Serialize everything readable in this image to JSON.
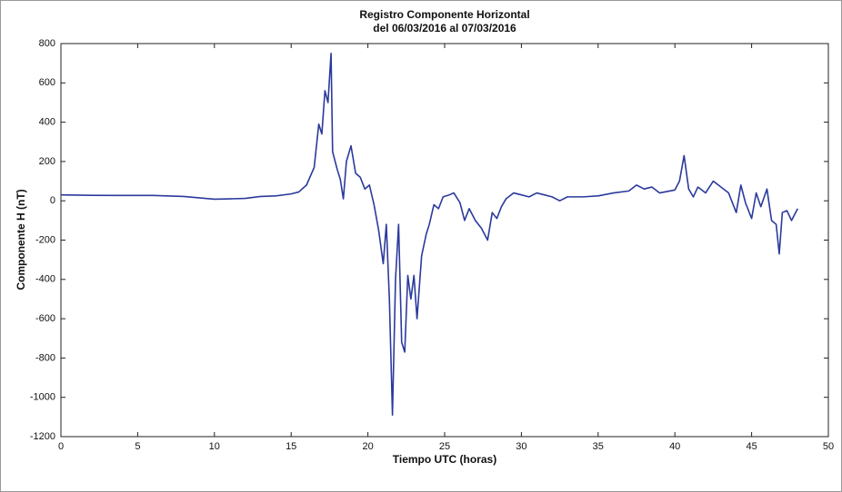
{
  "chart_data": {
    "type": "line",
    "title": "Registro Componente Horizontal",
    "subtitle": "del 06/03/2016 al 07/03/2016",
    "x_label": "Tiempo UTC (horas)",
    "y_label": "Componente H (nT)",
    "xlim": [
      0,
      50
    ],
    "xticks": [
      0,
      5,
      10,
      15,
      20,
      25,
      30,
      35,
      40,
      45,
      50
    ],
    "ylim": [
      -1200,
      800
    ],
    "yticks": [
      -1200,
      -1000,
      -800,
      -600,
      -400,
      -200,
      0,
      200,
      400,
      600,
      800
    ],
    "grid": false,
    "x": [
      0,
      2,
      4,
      6,
      8,
      9,
      10,
      11,
      12,
      13,
      14,
      15,
      15.5,
      16,
      16.5,
      16.8,
      17,
      17.2,
      17.4,
      17.6,
      17.7,
      18,
      18.2,
      18.4,
      18.6,
      18.9,
      19.2,
      19.5,
      19.8,
      20.1,
      20.4,
      20.7,
      21,
      21.2,
      21.4,
      21.6,
      21.8,
      22,
      22.2,
      22.4,
      22.6,
      22.8,
      23,
      23.2,
      23.5,
      23.8,
      24,
      24.3,
      24.6,
      24.9,
      25.3,
      25.6,
      26,
      26.3,
      26.6,
      27,
      27.4,
      27.8,
      28.1,
      28.4,
      28.7,
      29,
      29.5,
      30,
      30.5,
      31,
      31.5,
      32,
      32.5,
      33,
      34,
      35,
      36,
      37,
      37.5,
      38,
      38.5,
      39,
      40,
      40.3,
      40.6,
      40.9,
      41.2,
      41.5,
      42,
      42.5,
      43,
      43.5,
      43.8,
      44,
      44.3,
      44.6,
      45,
      45.3,
      45.6,
      46,
      46.3,
      46.6,
      46.8,
      47,
      47.3,
      47.6,
      48
    ],
    "series": [
      {
        "name": "Componente H",
        "color": "#2b3a9c",
        "values": [
          30,
          28,
          27,
          27,
          22,
          15,
          8,
          10,
          12,
          22,
          25,
          35,
          45,
          80,
          170,
          390,
          340,
          560,
          500,
          750,
          250,
          160,
          110,
          10,
          200,
          280,
          140,
          120,
          60,
          80,
          -20,
          -150,
          -320,
          -120,
          -500,
          -1090,
          -400,
          -120,
          -720,
          -770,
          -380,
          -500,
          -380,
          -600,
          -280,
          -170,
          -120,
          -20,
          -40,
          20,
          30,
          40,
          -10,
          -100,
          -40,
          -100,
          -140,
          -200,
          -60,
          -90,
          -30,
          10,
          40,
          30,
          20,
          40,
          30,
          20,
          0,
          20,
          20,
          25,
          40,
          50,
          80,
          60,
          70,
          40,
          55,
          100,
          230,
          60,
          20,
          70,
          40,
          100,
          70,
          40,
          -20,
          -60,
          80,
          -10,
          -90,
          40,
          -30,
          60,
          -100,
          -120,
          -270,
          -60,
          -50,
          -100,
          -40
        ]
      }
    ]
  }
}
